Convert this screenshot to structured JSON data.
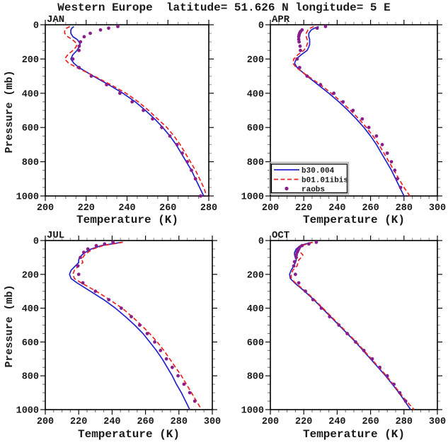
{
  "chart_data": {
    "type": "line",
    "title": "Western Europe  latitude= 51.626 N longitude= 5 E",
    "xlabel": "Temperature (K)",
    "ylabel": "Pressure (mb)",
    "colors": {
      "b30_004": "#2222cc",
      "b01_01ibis": "#ee2222",
      "raobs": "#871e8c",
      "axis": "#000000",
      "minor_tick": "#999999",
      "legend_shadow": "#aaaaaa"
    },
    "legend": {
      "position": "lower-left-of-APR-panel",
      "entries": [
        {
          "label": "b30.004",
          "series": "b30_004",
          "style": "solid-line"
        },
        {
          "label": "b01.01ibis",
          "series": "b01_01ibis",
          "style": "dashed-line"
        },
        {
          "label": "raobs",
          "series": "raobs",
          "style": "dot"
        }
      ]
    },
    "y_axis": {
      "min": 0,
      "max": 1000,
      "inverted": true,
      "major_ticks": [
        0,
        200,
        400,
        600,
        800,
        1000
      ],
      "minor_step": 50
    },
    "panels": [
      {
        "label": "JAN",
        "xlim": [
          200,
          280
        ],
        "x_major_ticks": [
          200,
          220,
          240,
          260,
          280
        ],
        "x_minor_step": 5,
        "model_levels": [
          10,
          20,
          30,
          50,
          70,
          85,
          100,
          115,
          130,
          150,
          175,
          200,
          225,
          250,
          300,
          350,
          400,
          450,
          500,
          550,
          600,
          650,
          700,
          750,
          800,
          850,
          900,
          950,
          1000
        ],
        "b30_004": [
          214,
          213,
          212.5,
          212.5,
          213.5,
          215.5,
          216.5,
          217,
          216.5,
          215.5,
          213.5,
          212.5,
          214,
          216.5,
          223.5,
          231,
          238,
          244,
          249,
          253.5,
          257.5,
          261,
          264,
          266.5,
          269,
          271.5,
          273.5,
          275.5,
          277.5
        ],
        "b01_01ibis": [
          212,
          210.5,
          209.5,
          209.5,
          211,
          213,
          214.5,
          215.5,
          215,
          213.5,
          211,
          209.5,
          211.5,
          215.5,
          224,
          232,
          239.5,
          245.5,
          250.5,
          255,
          259.5,
          263,
          266,
          268.5,
          271,
          273.5,
          275.5,
          277.5,
          279
        ],
        "raobs_levels": [
          10,
          20,
          30,
          50,
          70,
          100,
          125,
          150,
          200,
          250,
          300,
          350,
          400,
          450,
          500,
          550,
          600,
          650,
          700,
          750,
          800,
          850,
          900,
          1000
        ],
        "raobs": [
          235.5,
          231,
          227,
          222,
          219,
          217.2,
          216.6,
          216.5,
          213.5,
          216.5,
          222.5,
          230,
          236.5,
          242.5,
          248,
          252.5,
          257,
          261,
          264.5,
          267,
          269.5,
          271.5,
          273.5,
          276
        ],
        "has_legend": false
      },
      {
        "label": "APR",
        "xlim": [
          200,
          300
        ],
        "x_major_ticks": [
          200,
          220,
          240,
          260,
          280,
          300
        ],
        "x_minor_step": 5,
        "model_levels": [
          10,
          20,
          30,
          50,
          70,
          85,
          100,
          115,
          130,
          150,
          175,
          200,
          225,
          250,
          300,
          350,
          400,
          450,
          500,
          550,
          600,
          650,
          700,
          750,
          800,
          850,
          900,
          950,
          1000
        ],
        "b30_004": [
          229,
          226.5,
          224.5,
          223,
          223,
          223.5,
          223.5,
          223.5,
          223,
          222,
          218.5,
          215.5,
          214.5,
          216,
          222,
          228.5,
          235,
          241,
          246.5,
          251.5,
          256,
          260,
          263.5,
          266.5,
          269.5,
          272.5,
          275,
          277.5,
          280
        ],
        "b01_01ibis": [
          226,
          224,
          222.5,
          221.5,
          221.5,
          222,
          222.5,
          222,
          221.5,
          220,
          216.5,
          214,
          213.5,
          215.5,
          222.5,
          230,
          236.5,
          242.5,
          248,
          253,
          257.5,
          261.5,
          265,
          268,
          271,
          274,
          277,
          280,
          283.5
        ],
        "raobs_levels": [
          10,
          20,
          30,
          40,
          50,
          60,
          70,
          85,
          100,
          125,
          150,
          200,
          250,
          300,
          350,
          400,
          450,
          500,
          550,
          600,
          650,
          700,
          750,
          800,
          850,
          900,
          950
        ],
        "raobs": [
          233,
          228,
          219,
          218,
          217.5,
          217.2,
          217,
          217,
          217.2,
          217.8,
          218,
          216,
          217.5,
          222,
          230,
          238,
          243.5,
          249.5,
          255,
          259,
          263.5,
          267,
          270,
          272.5,
          274.5,
          276,
          278
        ],
        "has_legend": true
      },
      {
        "label": "JUL",
        "xlim": [
          200,
          300
        ],
        "x_major_ticks": [
          200,
          220,
          240,
          260,
          280,
          300
        ],
        "x_minor_step": 5,
        "model_levels": [
          10,
          20,
          30,
          50,
          70,
          85,
          100,
          115,
          130,
          150,
          175,
          200,
          225,
          250,
          300,
          350,
          400,
          450,
          500,
          550,
          600,
          650,
          700,
          750,
          800,
          850,
          900,
          950,
          1000
        ],
        "b30_004": [
          246,
          239.5,
          233.5,
          227.5,
          224,
          222,
          220.5,
          220,
          220,
          218,
          215.5,
          214.5,
          215.5,
          219,
          227,
          235,
          242,
          248,
          253.5,
          258.5,
          262.5,
          266.5,
          270,
          273,
          276,
          278.5,
          281.5,
          284,
          286.5
        ],
        "b01_01ibis": [
          246.5,
          240.5,
          234.5,
          228.5,
          225.5,
          223.5,
          222.5,
          222,
          222.5,
          220,
          217.5,
          216.5,
          217.5,
          221.5,
          230.5,
          238.5,
          246,
          252,
          257.5,
          262.5,
          267,
          271,
          274.5,
          278,
          281.5,
          284.5,
          287.5,
          290.5,
          293.5
        ],
        "raobs_levels": [
          10,
          20,
          30,
          50,
          70,
          100,
          150,
          200,
          250,
          300,
          350,
          400,
          450,
          500,
          550,
          600,
          650,
          700,
          750,
          800,
          850,
          900,
          950
        ],
        "raobs": [
          240.5,
          235.5,
          230.5,
          225.5,
          223,
          221,
          219.5,
          220,
          222.5,
          230,
          238,
          245.5,
          251.5,
          256.5,
          261,
          265.5,
          269,
          272.5,
          276,
          279.5,
          283,
          286.5,
          289.5
        ],
        "has_legend": false
      },
      {
        "label": "OCT",
        "xlim": [
          200,
          300
        ],
        "x_major_ticks": [
          200,
          220,
          240,
          260,
          280,
          300
        ],
        "x_minor_step": 5,
        "model_levels": [
          10,
          20,
          30,
          50,
          70,
          85,
          100,
          115,
          130,
          150,
          175,
          200,
          225,
          250,
          300,
          350,
          400,
          450,
          500,
          550,
          600,
          650,
          700,
          750,
          800,
          850,
          900,
          950,
          1000
        ],
        "b30_004": [
          225,
          221,
          218,
          215.5,
          214.5,
          214.5,
          215,
          215.5,
          215,
          214,
          212.5,
          211.5,
          212,
          214.5,
          220.5,
          226,
          231,
          236,
          241,
          246,
          251,
          255.5,
          260,
          264.5,
          269,
          273,
          277,
          280.5,
          284
        ],
        "b01_01ibis": [
          225.5,
          222,
          219,
          217,
          218,
          219.5,
          218.5,
          217,
          216.5,
          216,
          213.5,
          212.5,
          212.5,
          215,
          221,
          226.5,
          231.5,
          236.5,
          241.5,
          246.5,
          251.5,
          256,
          260.5,
          265,
          269.5,
          273.5,
          277.5,
          281.5,
          286
        ],
        "raobs_levels": [
          10,
          20,
          30,
          40,
          50,
          60,
          70,
          85,
          100,
          125,
          150,
          200,
          250,
          300,
          350,
          400,
          450,
          500,
          550,
          600,
          650,
          700,
          750,
          800,
          850,
          900,
          950
        ],
        "raobs": [
          227.5,
          223,
          219,
          217.5,
          217,
          216.5,
          216,
          215.5,
          215.5,
          214.5,
          214,
          215,
          217,
          221,
          225.5,
          230.5,
          235.5,
          241,
          246,
          251,
          256,
          261,
          265.5,
          270,
          274,
          277.5,
          281
        ],
        "has_legend": false
      }
    ]
  }
}
